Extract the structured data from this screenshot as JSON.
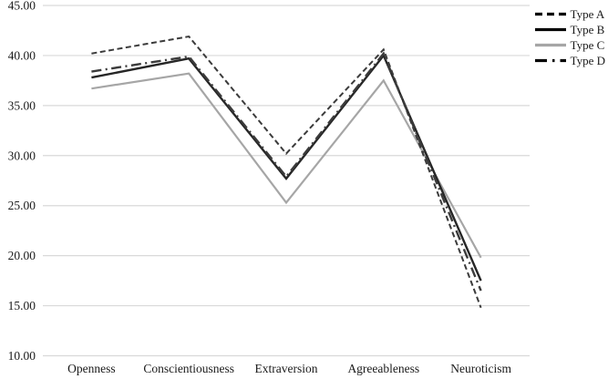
{
  "chart_data": {
    "type": "line",
    "title": "",
    "xlabel": "",
    "ylabel": "",
    "categories": [
      "Openness",
      "Conscientiousness",
      "Extraversion",
      "Agreeableness",
      "Neuroticism"
    ],
    "series": [
      {
        "name": "Type A",
        "values": [
          40.2,
          41.9,
          30.2,
          40.6,
          14.8
        ],
        "line_style": "dashed",
        "color": "#3b3b3b",
        "legend_color": "#000000",
        "dash": "6 3.5",
        "legend_dash": "8 5",
        "width": 2
      },
      {
        "name": "Type B",
        "values": [
          37.8,
          39.7,
          27.7,
          40.0,
          17.5
        ],
        "line_style": "solid",
        "color": "#262626",
        "legend_color": "#000000",
        "dash": "",
        "legend_dash": "",
        "width": 2.4
      },
      {
        "name": "Type C",
        "values": [
          36.7,
          38.2,
          25.3,
          37.5,
          19.8
        ],
        "line_style": "solid",
        "color": "#a6a6a6",
        "legend_color": "#a6a6a6",
        "dash": "",
        "legend_dash": "",
        "width": 2.2
      },
      {
        "name": "Type D",
        "values": [
          38.4,
          39.9,
          27.9,
          40.2,
          16.5
        ],
        "line_style": "dash-dot",
        "color": "#3b3b3b",
        "legend_color": "#000000",
        "dash": "11 4.5 2 4.5",
        "legend_dash": "13 6 2.5 6",
        "width": 2.4
      }
    ],
    "ylim": [
      10,
      45
    ],
    "y_ticks": [
      {
        "value": 45,
        "label": "45.00"
      },
      {
        "value": 40,
        "label": "40.00"
      },
      {
        "value": 35,
        "label": "35.00"
      },
      {
        "value": 30,
        "label": "30.00"
      },
      {
        "value": 25,
        "label": "25.00"
      },
      {
        "value": 20,
        "label": "20.00"
      },
      {
        "value": 15,
        "label": "15.00"
      },
      {
        "value": 10,
        "label": "10.00"
      }
    ],
    "grid": "horizontal",
    "grid_color": "#d9d9d9",
    "text_color": "#1a1a1a",
    "legend_position": "top-right",
    "draw_order": [
      2,
      1,
      3,
      0
    ]
  }
}
